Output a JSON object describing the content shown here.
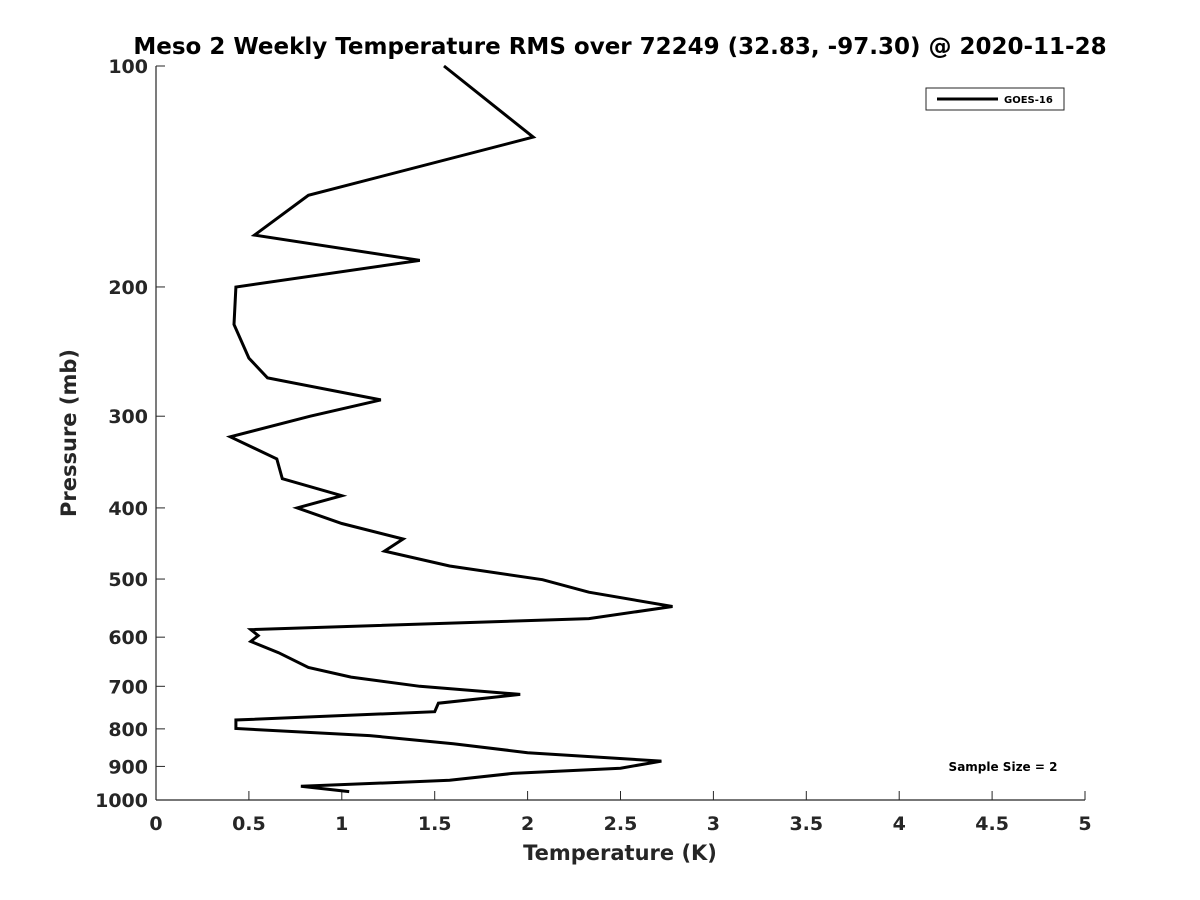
{
  "chart_data": {
    "type": "line",
    "title": "Meso 2 Weekly Temperature RMS over 72249 (32.83, -97.30) @ 2020-11-28",
    "xlabel": "Temperature (K)",
    "ylabel": "Pressure (mb)",
    "xlim": [
      0,
      5
    ],
    "ylim": [
      100,
      1000
    ],
    "y_scale": "log",
    "y_reversed": true,
    "grid": false,
    "legend_position": "top-right",
    "x_ticks": [
      0,
      0.5,
      1,
      1.5,
      2,
      2.5,
      3,
      3.5,
      4,
      4.5,
      5
    ],
    "x_tick_labels": [
      "0",
      "0.5",
      "1",
      "1.5",
      "2",
      "2.5",
      "3",
      "3.5",
      "4",
      "4.5",
      "5"
    ],
    "y_ticks": [
      100,
      200,
      300,
      400,
      500,
      600,
      700,
      800,
      900,
      1000
    ],
    "y_tick_labels": [
      "100",
      "200",
      "300",
      "400",
      "500",
      "600",
      "700",
      "800",
      "900",
      "1000"
    ],
    "annotation": "Sample Size = 2",
    "series": [
      {
        "name": "GOES-16",
        "color": "#000000",
        "points": [
          [
            1.55,
            100
          ],
          [
            2.03,
            125
          ],
          [
            0.82,
            150
          ],
          [
            0.53,
            170
          ],
          [
            1.42,
            184
          ],
          [
            0.43,
            200
          ],
          [
            0.42,
            225
          ],
          [
            0.5,
            250
          ],
          [
            0.6,
            266
          ],
          [
            1.21,
            285
          ],
          [
            0.83,
            300
          ],
          [
            0.4,
            320
          ],
          [
            0.65,
            343
          ],
          [
            0.68,
            365
          ],
          [
            1.0,
            385
          ],
          [
            0.76,
            400
          ],
          [
            1.0,
            420
          ],
          [
            1.33,
            441
          ],
          [
            1.23,
            458
          ],
          [
            1.58,
            480
          ],
          [
            2.08,
            501
          ],
          [
            2.33,
            521
          ],
          [
            2.78,
            545
          ],
          [
            2.33,
            566
          ],
          [
            0.51,
            586
          ],
          [
            0.55,
            597
          ],
          [
            0.51,
            608
          ],
          [
            0.66,
            630
          ],
          [
            0.82,
            660
          ],
          [
            1.05,
            680
          ],
          [
            1.42,
            700
          ],
          [
            1.96,
            718
          ],
          [
            1.52,
            738
          ],
          [
            1.5,
            758
          ],
          [
            0.43,
            778
          ],
          [
            0.43,
            799
          ],
          [
            1.15,
            817
          ],
          [
            1.6,
            838
          ],
          [
            2.0,
            862
          ],
          [
            2.72,
            885
          ],
          [
            2.5,
            905
          ],
          [
            1.92,
            920
          ],
          [
            1.58,
            940
          ],
          [
            0.78,
            958
          ],
          [
            1.04,
            974
          ]
        ]
      }
    ]
  }
}
